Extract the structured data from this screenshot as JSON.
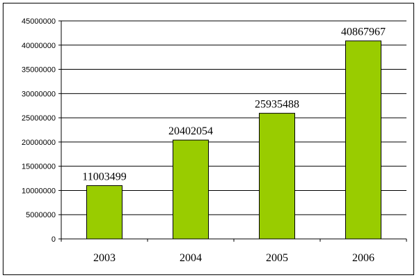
{
  "chart_data": {
    "type": "bar",
    "categories": [
      "2003",
      "2004",
      "2005",
      "2006"
    ],
    "values": [
      11003499,
      20402054,
      25935488,
      40867967
    ],
    "data_labels": [
      "11003499",
      "20402054",
      "25935488",
      "40867967"
    ],
    "title": "",
    "xlabel": "",
    "ylabel": "",
    "ylim": [
      0,
      45000000
    ],
    "yticks": [
      0,
      5000000,
      10000000,
      15000000,
      20000000,
      25000000,
      30000000,
      35000000,
      40000000,
      45000000
    ],
    "grid": true,
    "legend": "none",
    "bar_color": "#99cc00"
  }
}
